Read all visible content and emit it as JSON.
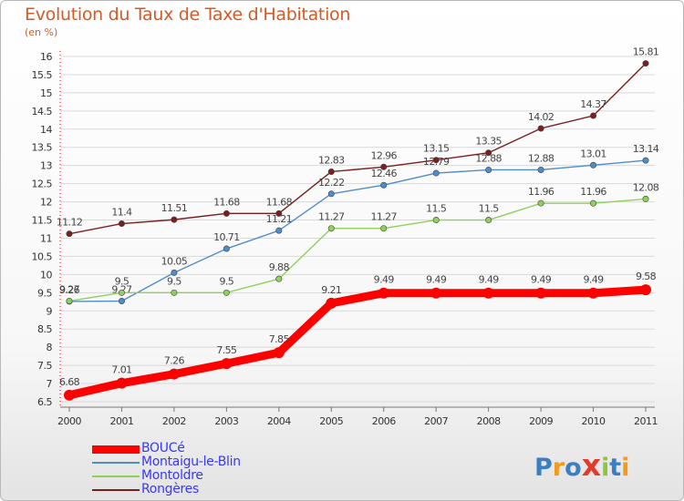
{
  "header": {
    "title": "Evolution du Taux de Taxe d'Habitation",
    "unit": "(en %)"
  },
  "logo": {
    "text": "Proxiti"
  },
  "colors": {
    "title": "#d45a27",
    "legend_text": "#3737ff",
    "grid": "#d9d9d9"
  },
  "chart_data": {
    "type": "line",
    "title": "Evolution du Taux de Taxe d'Habitation",
    "ylabel": "(en %)",
    "xlabel": "",
    "x": [
      "2000",
      "2001",
      "2002",
      "2003",
      "2004",
      "2005",
      "2006",
      "2007",
      "2008",
      "2009",
      "2010",
      "2011"
    ],
    "ylim": [
      6.5,
      16
    ],
    "y_ticks": [
      "6.5",
      "7",
      "7.5",
      "8",
      "8.5",
      "9",
      "9.5",
      "10",
      "10.5",
      "11",
      "11.5",
      "12",
      "12.5",
      "13",
      "13.5",
      "14",
      "14.5",
      "15",
      "15.5",
      "16"
    ],
    "grid": "horizontal",
    "legend_position": "bottom-left",
    "series": [
      {
        "name": "Rongères",
        "color": "#7a1f1f",
        "values": [
          11.12,
          11.4,
          11.51,
          11.68,
          11.68,
          12.83,
          12.96,
          13.15,
          13.35,
          14.02,
          14.37,
          15.81
        ],
        "labels": [
          "11.12",
          "11.4",
          "11.51",
          "11.68",
          "11.68",
          "12.83",
          "12.96",
          "13.15",
          "13.35",
          "14.02",
          "14.37",
          "15.81"
        ]
      },
      {
        "name": "Montaigu-le-Blin",
        "color": "#4f8dc9",
        "values": [
          9.26,
          9.27,
          10.05,
          10.71,
          11.21,
          12.22,
          12.46,
          12.79,
          12.88,
          12.88,
          13.01,
          13.14
        ],
        "labels": [
          "9.26",
          "9.27",
          "10.05",
          "10.71",
          "11.21",
          "12.22",
          "12.46",
          "12.79",
          "12.88",
          "12.88",
          "13.01",
          "13.14"
        ]
      },
      {
        "name": "Montoldre",
        "color": "#8fd05a",
        "values": [
          9.27,
          9.5,
          9.5,
          9.5,
          9.88,
          11.27,
          11.27,
          11.5,
          11.5,
          11.96,
          11.96,
          12.08
        ],
        "labels": [
          "9.27",
          "9.5",
          "9.5",
          "9.5",
          "9.88",
          "11.27",
          "11.27",
          "11.5",
          "11.5",
          "11.96",
          "11.96",
          "12.08"
        ]
      },
      {
        "name": "BOUCé",
        "color": "#ff0000",
        "emphasis": true,
        "values": [
          6.68,
          7.01,
          7.26,
          7.55,
          7.85,
          9.21,
          9.49,
          9.49,
          9.49,
          9.49,
          9.49,
          9.58
        ],
        "labels": [
          "6.68",
          "7.01",
          "7.26",
          "7.55",
          "7.85",
          "9.21",
          "9.49",
          "9.49",
          "9.49",
          "9.49",
          "9.49",
          "9.58"
        ]
      }
    ],
    "legend_order": [
      "BOUCé",
      "Montaigu-le-Blin",
      "Montoldre",
      "Rongères"
    ]
  }
}
